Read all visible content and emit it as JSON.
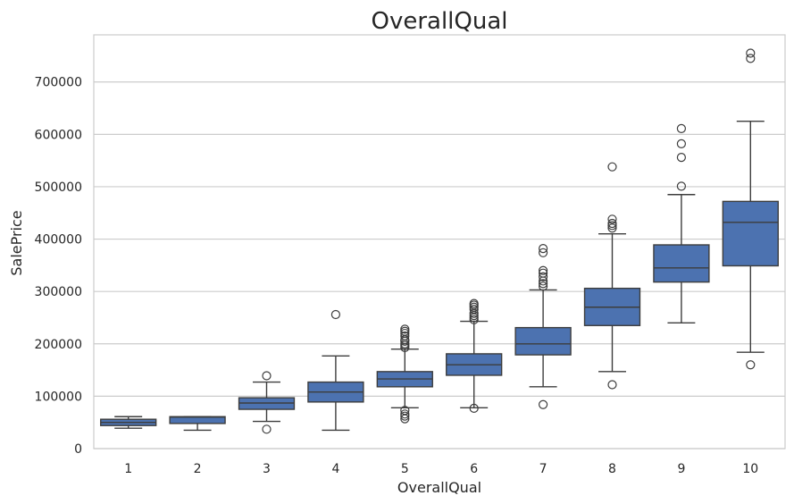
{
  "chart_data": {
    "type": "box",
    "title": "OverallQual",
    "xlabel": "OverallQual",
    "ylabel": "SalePrice",
    "ylim": [
      0,
      790000
    ],
    "yticks": [
      0,
      100000,
      200000,
      300000,
      400000,
      500000,
      600000,
      700000
    ],
    "grid": "horizontal",
    "color": "#4c72b0",
    "categories": [
      "1",
      "2",
      "3",
      "4",
      "5",
      "6",
      "7",
      "8",
      "9",
      "10"
    ],
    "boxes": [
      {
        "category": "1",
        "whislo": 39000,
        "q1": 44000,
        "med": 50000,
        "q3": 56000,
        "whishi": 61000,
        "fliers": []
      },
      {
        "category": "2",
        "whislo": 35000,
        "q1": 48000,
        "med": 60000,
        "q3": 61000,
        "whishi": 61000,
        "fliers": []
      },
      {
        "category": "3",
        "whislo": 52000,
        "q1": 75000,
        "med": 87000,
        "q3": 97000,
        "whishi": 127000,
        "fliers": [
          139000,
          37000
        ]
      },
      {
        "category": "4",
        "whislo": 35000,
        "q1": 89000,
        "med": 108000,
        "q3": 127000,
        "whishi": 177000,
        "fliers": [
          256000
        ]
      },
      {
        "category": "5",
        "whislo": 78000,
        "q1": 118000,
        "med": 133000,
        "q3": 147000,
        "whishi": 190000,
        "fliers": [
          193000,
          197000,
          200000,
          205000,
          208000,
          215000,
          220000,
          224000,
          228000,
          57000,
          62000,
          66000,
          73000
        ]
      },
      {
        "category": "6",
        "whislo": 78000,
        "q1": 140000,
        "med": 160000,
        "q3": 181000,
        "whishi": 243000,
        "fliers": [
          246000,
          250000,
          254000,
          258000,
          266000,
          270000,
          274000,
          277000,
          77000
        ]
      },
      {
        "category": "7",
        "whislo": 118000,
        "q1": 179000,
        "med": 200000,
        "q3": 231000,
        "whishi": 303000,
        "fliers": [
          310000,
          315000,
          320000,
          328000,
          335000,
          340000,
          374000,
          382000,
          84000
        ]
      },
      {
        "category": "8",
        "whislo": 147000,
        "q1": 235000,
        "med": 270000,
        "q3": 306000,
        "whishi": 410000,
        "fliers": [
          421000,
          426000,
          430000,
          438000,
          538000,
          122000
        ]
      },
      {
        "category": "9",
        "whislo": 240000,
        "q1": 318000,
        "med": 345000,
        "q3": 389000,
        "whishi": 485000,
        "fliers": [
          501000,
          556000,
          582000,
          611000
        ]
      },
      {
        "category": "10",
        "whislo": 184000,
        "q1": 349000,
        "med": 432000,
        "q3": 472000,
        "whishi": 625000,
        "fliers": [
          745000,
          755000,
          160000
        ]
      }
    ]
  }
}
